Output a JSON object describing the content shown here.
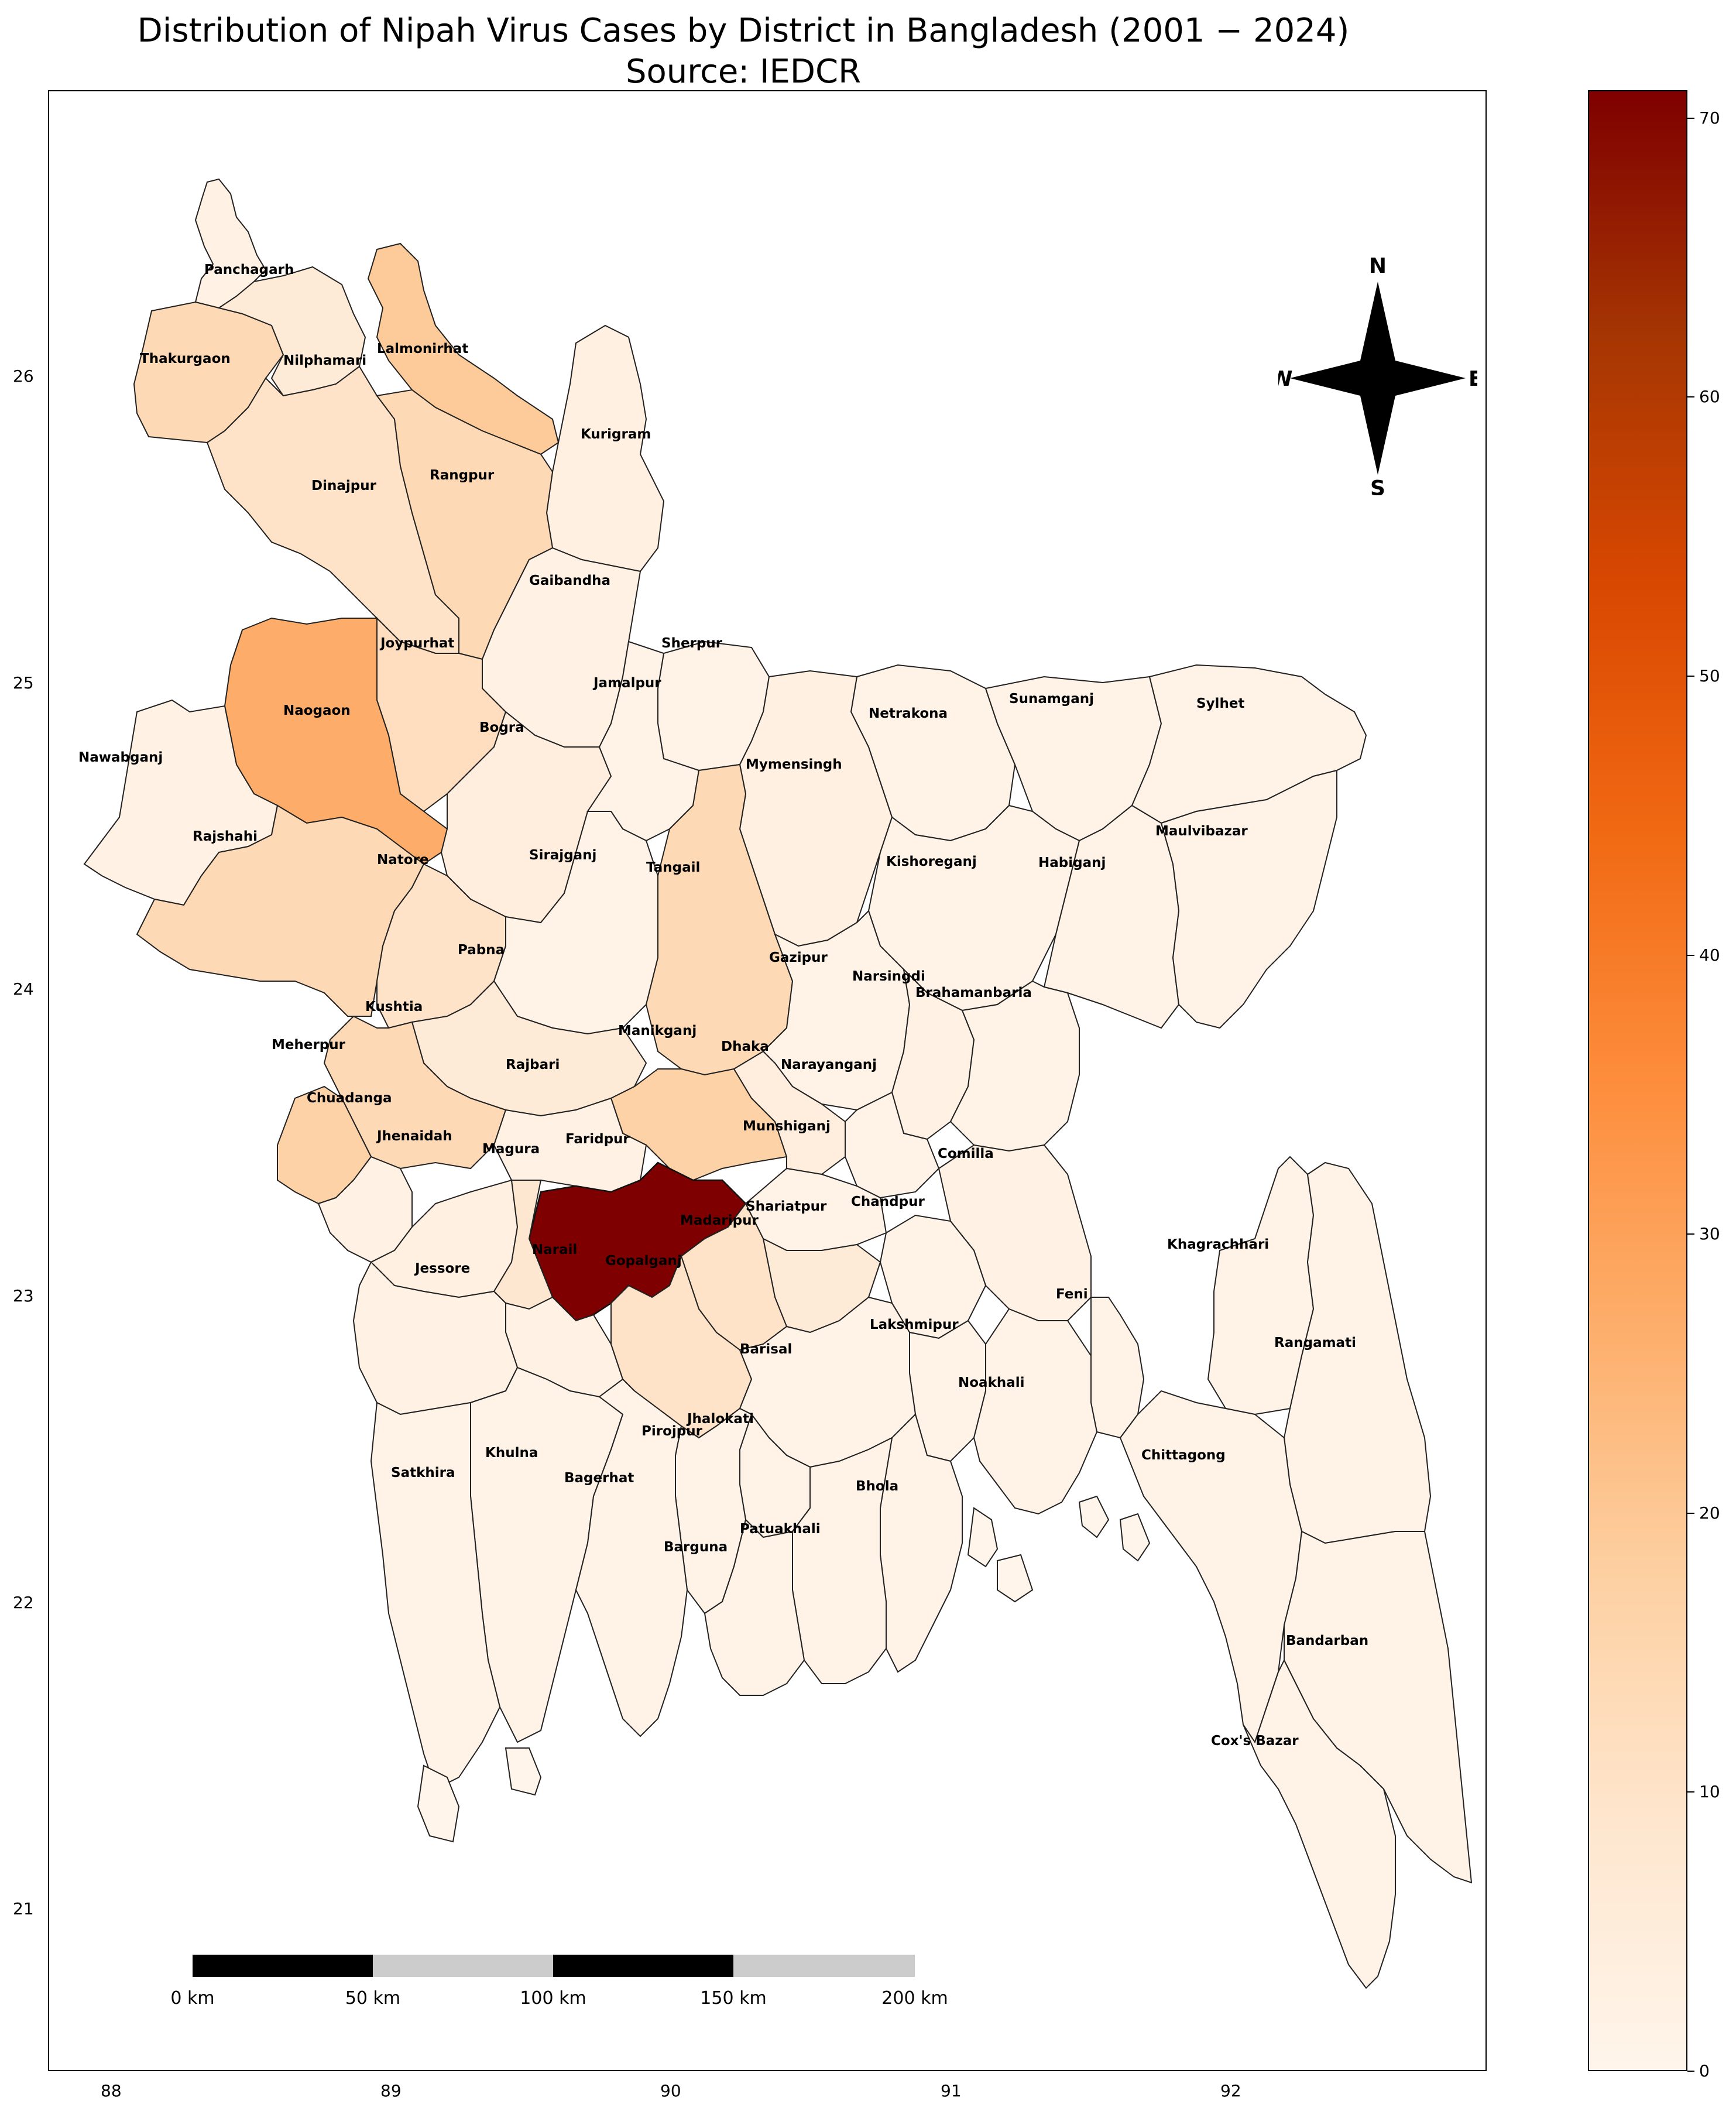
{
  "title": {
    "line1": "Distribution of Nipah Virus Cases by District in Bangladesh (2001 − 2024)",
    "line2": "Source: IEDCR"
  },
  "axes": {
    "x_ticks": [
      "88",
      "89",
      "90",
      "91",
      "92"
    ],
    "y_ticks": [
      "26",
      "25",
      "24",
      "23",
      "22",
      "21"
    ]
  },
  "compass": {
    "n": "N",
    "s": "S",
    "e": "E",
    "w": "W"
  },
  "scale_bar": {
    "labels": [
      "0 km",
      "50 km",
      "100 km",
      "150 km",
      "200 km"
    ]
  },
  "colorbar": {
    "ticks": [
      "70",
      "60",
      "50",
      "40",
      "30",
      "20",
      "10",
      "0"
    ],
    "min": 0,
    "max": 71,
    "colors": [
      "#fff5eb",
      "#fee6ce",
      "#fdd0a2",
      "#fdae6b",
      "#fd8d3c",
      "#f16913",
      "#d94801",
      "#a63603",
      "#7f0000"
    ]
  },
  "districts": [
    {
      "name": "Panchagarh",
      "cases": 2
    },
    {
      "name": "Thakurgaon",
      "cases": 14
    },
    {
      "name": "Nilphamari",
      "cases": 6
    },
    {
      "name": "Lalmonirhat",
      "cases": 19
    },
    {
      "name": "Kurigram",
      "cases": 3
    },
    {
      "name": "Dinajpur",
      "cases": 10
    },
    {
      "name": "Rangpur",
      "cases": 14
    },
    {
      "name": "Gaibandha",
      "cases": 2
    },
    {
      "name": "Joypurhat",
      "cases": 12
    },
    {
      "name": "Naogaon",
      "cases": 27
    },
    {
      "name": "Nawabganj",
      "cases": 2
    },
    {
      "name": "Bogra",
      "cases": 4
    },
    {
      "name": "Sherpur",
      "cases": 1
    },
    {
      "name": "Jamalpur",
      "cases": 1
    },
    {
      "name": "Netrakona",
      "cases": 1
    },
    {
      "name": "Sunamganj",
      "cases": 1
    },
    {
      "name": "Sylhet",
      "cases": 1
    },
    {
      "name": "Mymensingh",
      "cases": 3
    },
    {
      "name": "Rajshahi",
      "cases": 14
    },
    {
      "name": "Natore",
      "cases": 10
    },
    {
      "name": "Sirajganj",
      "cases": 1
    },
    {
      "name": "Tangail",
      "cases": 14
    },
    {
      "name": "Kishoreganj",
      "cases": 1
    },
    {
      "name": "Habiganj",
      "cases": 1
    },
    {
      "name": "Maulvibazar",
      "cases": 1
    },
    {
      "name": "Gazipur",
      "cases": 1
    },
    {
      "name": "Pabna",
      "cases": 6
    },
    {
      "name": "Narsingdi",
      "cases": 2
    },
    {
      "name": "Brahamanbaria",
      "cases": 1
    },
    {
      "name": "Kushtia",
      "cases": 14
    },
    {
      "name": "Manikganj",
      "cases": 17
    },
    {
      "name": "Meherpur",
      "cases": 17
    },
    {
      "name": "Dhaka",
      "cases": 4
    },
    {
      "name": "Rajbari",
      "cases": 2
    },
    {
      "name": "Narayanganj",
      "cases": 1
    },
    {
      "name": "Chuadanga",
      "cases": 2
    },
    {
      "name": "Faridpur",
      "cases": 71
    },
    {
      "name": "Munshiganj",
      "cases": 1
    },
    {
      "name": "Jhenaidah",
      "cases": 3
    },
    {
      "name": "Magura",
      "cases": 8
    },
    {
      "name": "Comilla",
      "cases": 2
    },
    {
      "name": "Shariatpur",
      "cases": 6
    },
    {
      "name": "Chandpur",
      "cases": 1
    },
    {
      "name": "Madaripur",
      "cases": 10
    },
    {
      "name": "Khagrachhari",
      "cases": 1
    },
    {
      "name": "Narail",
      "cases": 2
    },
    {
      "name": "Gopalganj",
      "cases": 10
    },
    {
      "name": "Jessore",
      "cases": 2
    },
    {
      "name": "Feni",
      "cases": 1
    },
    {
      "name": "Lakshmipur",
      "cases": 1
    },
    {
      "name": "Rangamati",
      "cases": 1
    },
    {
      "name": "Barisal",
      "cases": 1
    },
    {
      "name": "Noakhali",
      "cases": 1
    },
    {
      "name": "Jhalokati",
      "cases": 1
    },
    {
      "name": "Pirojpur",
      "cases": 1
    },
    {
      "name": "Khulna",
      "cases": 1
    },
    {
      "name": "Chittagong",
      "cases": 1
    },
    {
      "name": "Satkhira",
      "cases": 1
    },
    {
      "name": "Bagerhat",
      "cases": 1
    },
    {
      "name": "Bhola",
      "cases": 1
    },
    {
      "name": "Patuakhali",
      "cases": 1
    },
    {
      "name": "Barguna",
      "cases": 1
    },
    {
      "name": "Bandarban",
      "cases": 1
    },
    {
      "name": "Cox's Bazar",
      "cases": 1
    }
  ]
}
